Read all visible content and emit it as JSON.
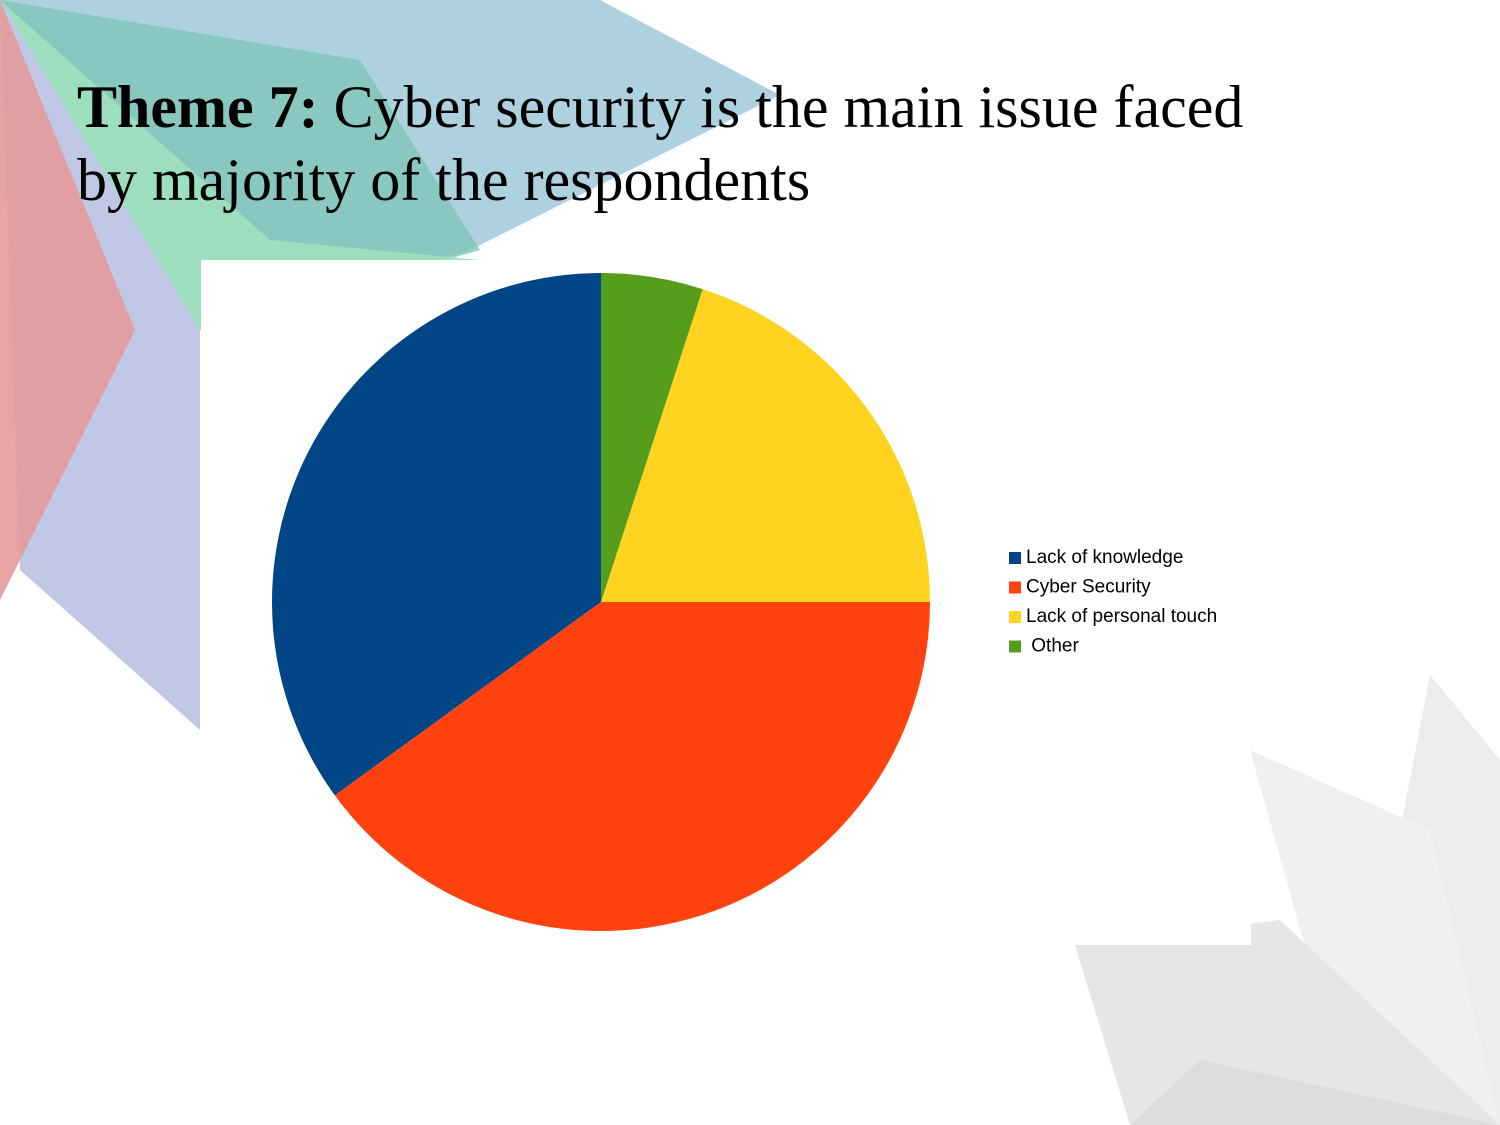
{
  "chart_data": {
    "type": "pie",
    "title_lead": "Theme 7:",
    "title": "Cyber security is the main issue faced by majority of the respondents",
    "categories": [
      "Lack of knowledge",
      "Cyber Security",
      "Lack of personal touch",
      " Other"
    ],
    "values": [
      35,
      40,
      20,
      5
    ],
    "colors": [
      "#004586",
      "#ff420e",
      "#ffd320",
      "#579d1c"
    ],
    "direction": "counterclockwise",
    "legend": "right"
  }
}
